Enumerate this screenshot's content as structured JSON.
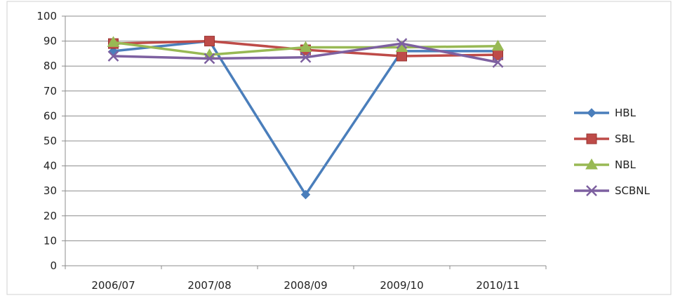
{
  "chart_data": {
    "type": "line",
    "title": "",
    "xlabel": "",
    "ylabel": "",
    "categories": [
      "2006/07",
      "2007/08",
      "2008/09",
      "2009/10",
      "2010/11"
    ],
    "ylim": [
      0,
      100
    ],
    "yticks": [
      0,
      10,
      20,
      30,
      40,
      50,
      60,
      70,
      80,
      90,
      100
    ],
    "grid": "horizontal",
    "legend_position": "right",
    "series": [
      {
        "name": "HBL",
        "color": "#4a7ebb",
        "marker": "diamond",
        "values": [
          86,
          90,
          28.5,
          86,
          86
        ]
      },
      {
        "name": "SBL",
        "color": "#be4b48",
        "marker": "square",
        "values": [
          89,
          90,
          86.5,
          84,
          84.5
        ]
      },
      {
        "name": "NBL",
        "color": "#98b954",
        "marker": "triangle",
        "values": [
          89.5,
          84.5,
          87.5,
          87.5,
          88
        ]
      },
      {
        "name": "SCBNL",
        "color": "#7d60a0",
        "marker": "x",
        "values": [
          84,
          83,
          83.5,
          89,
          81.5
        ]
      }
    ]
  }
}
